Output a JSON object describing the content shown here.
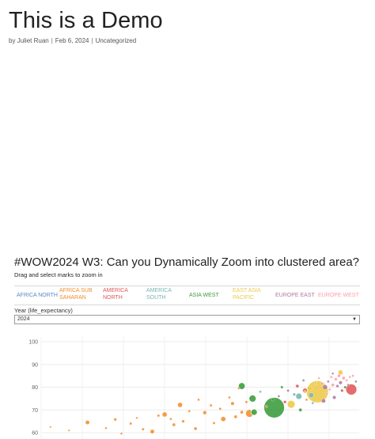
{
  "post": {
    "title": "This is a Demo",
    "meta": {
      "by": "by",
      "author": "Juliet Ruan",
      "date": "Feb 6, 2024",
      "category": "Uncategorized",
      "separator": "|"
    }
  },
  "viz": {
    "title": "#WOW2024 W3: Can you Dynamically Zoom into clustered area?",
    "subtitle": "Drag and select marks to zoom in",
    "legend": [
      {
        "label": "AFRICA NORTH",
        "color": "#5b87c5"
      },
      {
        "label": "AFRICA SUB SAHARAN",
        "color": "#f28e2b"
      },
      {
        "label": "AMERICA NORTH",
        "color": "#e15759"
      },
      {
        "label": "AMERICA SOUTH",
        "color": "#76b7b2"
      },
      {
        "label": "ASIA WEST",
        "color": "#3a9c3a"
      },
      {
        "label": "EAST ASIA PACIFIC",
        "color": "#edc948"
      },
      {
        "label": "EUROPE EAST",
        "color": "#b07aa1"
      },
      {
        "label": "EUROPE WEST",
        "color": "#ff9da7"
      }
    ],
    "filter": {
      "label": "Year (life_expectancy)",
      "value": "2024",
      "caret": "▼"
    }
  },
  "chart_data": {
    "type": "scatter",
    "xlabel": "",
    "ylabel": "",
    "ylim": [
      60,
      100
    ],
    "y_ticks": [
      60,
      70,
      80,
      90,
      100
    ],
    "grid": true,
    "points": [
      {
        "x": 0.02,
        "y": 62.5,
        "r": 1.2,
        "region": 1
      },
      {
        "x": 0.08,
        "y": 61.0,
        "r": 1.2,
        "region": 1
      },
      {
        "x": 0.14,
        "y": 64.5,
        "r": 2.6,
        "region": 1
      },
      {
        "x": 0.2,
        "y": 62.0,
        "r": 1.4,
        "region": 1
      },
      {
        "x": 0.23,
        "y": 65.8,
        "r": 1.8,
        "region": 1
      },
      {
        "x": 0.25,
        "y": 59.6,
        "r": 1.4,
        "region": 1
      },
      {
        "x": 0.28,
        "y": 64.0,
        "r": 1.6,
        "region": 1
      },
      {
        "x": 0.3,
        "y": 66.5,
        "r": 1.3,
        "region": 1
      },
      {
        "x": 0.32,
        "y": 61.5,
        "r": 1.6,
        "region": 1
      },
      {
        "x": 0.35,
        "y": 60.5,
        "r": 2.6,
        "region": 1
      },
      {
        "x": 0.37,
        "y": 67.5,
        "r": 1.6,
        "region": 1
      },
      {
        "x": 0.39,
        "y": 68.0,
        "r": 3.0,
        "region": 1
      },
      {
        "x": 0.41,
        "y": 66.0,
        "r": 1.5,
        "region": 1
      },
      {
        "x": 0.42,
        "y": 63.5,
        "r": 2.0,
        "region": 1
      },
      {
        "x": 0.44,
        "y": 72.2,
        "r": 3.0,
        "region": 1
      },
      {
        "x": 0.45,
        "y": 65.0,
        "r": 1.8,
        "region": 1
      },
      {
        "x": 0.47,
        "y": 69.5,
        "r": 1.5,
        "region": 1
      },
      {
        "x": 0.49,
        "y": 61.8,
        "r": 2.0,
        "region": 1
      },
      {
        "x": 0.5,
        "y": 74.5,
        "r": 1.5,
        "region": 1
      },
      {
        "x": 0.52,
        "y": 68.8,
        "r": 2.3,
        "region": 1
      },
      {
        "x": 0.54,
        "y": 72.0,
        "r": 1.6,
        "region": 1
      },
      {
        "x": 0.55,
        "y": 64.2,
        "r": 1.6,
        "region": 1
      },
      {
        "x": 0.57,
        "y": 70.5,
        "r": 1.6,
        "region": 1
      },
      {
        "x": 0.58,
        "y": 66.0,
        "r": 3.0,
        "region": 1
      },
      {
        "x": 0.6,
        "y": 75.5,
        "r": 1.5,
        "region": 1
      },
      {
        "x": 0.61,
        "y": 72.8,
        "r": 2.2,
        "region": 1
      },
      {
        "x": 0.62,
        "y": 67.0,
        "r": 2.0,
        "region": 1
      },
      {
        "x": 0.63,
        "y": 79.5,
        "r": 1.4,
        "region": 1
      },
      {
        "x": 0.64,
        "y": 69.0,
        "r": 2.0,
        "region": 1
      },
      {
        "x": 0.655,
        "y": 73.5,
        "r": 1.6,
        "region": 1
      },
      {
        "x": 0.665,
        "y": 68.5,
        "r": 5.0,
        "region": 1
      },
      {
        "x": 0.675,
        "y": 75.0,
        "r": 4.5,
        "region": 4
      },
      {
        "x": 0.68,
        "y": 69.0,
        "r": 4.0,
        "region": 4
      },
      {
        "x": 0.7,
        "y": 78.0,
        "r": 1.5,
        "region": 3
      },
      {
        "x": 0.72,
        "y": 71.5,
        "r": 1.6,
        "region": 1
      },
      {
        "x": 0.74,
        "y": 74.5,
        "r": 1.8,
        "region": 4
      },
      {
        "x": 0.745,
        "y": 71.0,
        "r": 13.0,
        "region": 4
      },
      {
        "x": 0.76,
        "y": 76.0,
        "r": 1.5,
        "region": 6
      },
      {
        "x": 0.77,
        "y": 80.0,
        "r": 1.6,
        "region": 4
      },
      {
        "x": 0.78,
        "y": 73.5,
        "r": 1.8,
        "region": 2
      },
      {
        "x": 0.79,
        "y": 78.5,
        "r": 1.6,
        "region": 6
      },
      {
        "x": 0.8,
        "y": 72.5,
        "r": 5.0,
        "region": 5
      },
      {
        "x": 0.81,
        "y": 76.8,
        "r": 1.8,
        "region": 3
      },
      {
        "x": 0.82,
        "y": 80.5,
        "r": 2.0,
        "region": 2
      },
      {
        "x": 0.825,
        "y": 76.0,
        "r": 4.0,
        "region": 3
      },
      {
        "x": 0.83,
        "y": 70.0,
        "r": 2.0,
        "region": 4
      },
      {
        "x": 0.84,
        "y": 83.0,
        "r": 1.5,
        "region": 6
      },
      {
        "x": 0.845,
        "y": 78.5,
        "r": 3.2,
        "region": 2
      },
      {
        "x": 0.85,
        "y": 74.5,
        "r": 1.5,
        "region": 1
      },
      {
        "x": 0.86,
        "y": 79.5,
        "r": 3.0,
        "region": 5
      },
      {
        "x": 0.865,
        "y": 76.5,
        "r": 3.0,
        "region": 3
      },
      {
        "x": 0.87,
        "y": 73.0,
        "r": 1.5,
        "region": 3
      },
      {
        "x": 0.88,
        "y": 81.5,
        "r": 1.8,
        "region": 5
      },
      {
        "x": 0.885,
        "y": 78.0,
        "r": 14.0,
        "region": 5
      },
      {
        "x": 0.89,
        "y": 84.0,
        "r": 1.4,
        "region": 7
      },
      {
        "x": 0.9,
        "y": 81.5,
        "r": 1.6,
        "region": 7
      },
      {
        "x": 0.905,
        "y": 74.0,
        "r": 2.6,
        "region": 6
      },
      {
        "x": 0.91,
        "y": 80.0,
        "r": 3.0,
        "region": 6
      },
      {
        "x": 0.915,
        "y": 77.0,
        "r": 1.5,
        "region": 7
      },
      {
        "x": 0.92,
        "y": 82.5,
        "r": 1.5,
        "region": 6
      },
      {
        "x": 0.925,
        "y": 79.0,
        "r": 1.5,
        "region": 7
      },
      {
        "x": 0.93,
        "y": 84.5,
        "r": 1.5,
        "region": 7
      },
      {
        "x": 0.935,
        "y": 81.0,
        "r": 2.0,
        "region": 7
      },
      {
        "x": 0.94,
        "y": 75.5,
        "r": 2.2,
        "region": 6
      },
      {
        "x": 0.945,
        "y": 83.5,
        "r": 1.8,
        "region": 7
      },
      {
        "x": 0.95,
        "y": 80.5,
        "r": 1.8,
        "region": 6
      },
      {
        "x": 0.955,
        "y": 85.0,
        "r": 2.0,
        "region": 7
      },
      {
        "x": 0.96,
        "y": 82.0,
        "r": 2.2,
        "region": 6
      },
      {
        "x": 0.965,
        "y": 78.5,
        "r": 1.8,
        "region": 2
      },
      {
        "x": 0.97,
        "y": 84.0,
        "r": 2.0,
        "region": 7
      },
      {
        "x": 0.975,
        "y": 80.0,
        "r": 1.6,
        "region": 4
      },
      {
        "x": 0.98,
        "y": 83.0,
        "r": 1.5,
        "region": 7
      },
      {
        "x": 0.985,
        "y": 81.0,
        "r": 1.5,
        "region": 6
      },
      {
        "x": 0.99,
        "y": 84.5,
        "r": 1.4,
        "region": 7
      },
      {
        "x": 0.995,
        "y": 79.0,
        "r": 7.0,
        "region": 2
      },
      {
        "x": 1.0,
        "y": 85.0,
        "r": 1.5,
        "region": 7
      },
      {
        "x": 1.01,
        "y": 82.5,
        "r": 1.5,
        "region": 6
      },
      {
        "x": 0.64,
        "y": 80.5,
        "r": 4.3,
        "region": 4
      },
      {
        "x": 0.96,
        "y": 86.5,
        "r": 3.0,
        "region": 5
      },
      {
        "x": 0.845,
        "y": 78.0,
        "r": 1.8,
        "region": 5
      },
      {
        "x": 0.935,
        "y": 86.0,
        "r": 1.4,
        "region": 6
      }
    ]
  }
}
